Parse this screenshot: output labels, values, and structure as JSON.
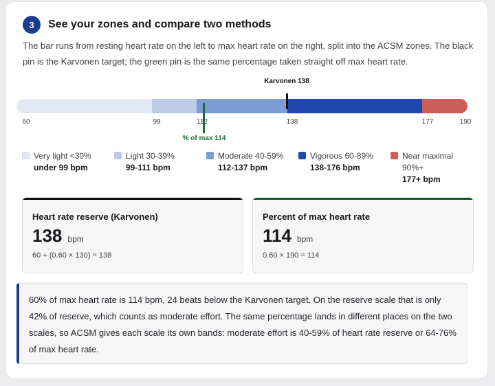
{
  "step": {
    "number": "3",
    "title": "See your zones and compare two methods"
  },
  "intro": "The bar runs from resting heart rate on the left to max heart rate on the right, split into the ACSM zones. The black pin is the Karvonen target; the green pin is the same percentage taken straight off max heart rate.",
  "zone_bar": {
    "min_bpm": 60,
    "max_bpm": 190,
    "segments": [
      {
        "name": "very-light",
        "from": 60,
        "to": 99,
        "color": "#e3e9f4"
      },
      {
        "name": "light",
        "from": 99,
        "to": 112,
        "color": "#bccbe8"
      },
      {
        "name": "moderate",
        "from": 112,
        "to": 138,
        "color": "#7b9dd4"
      },
      {
        "name": "vigorous",
        "from": 138,
        "to": 177,
        "color": "#1e48b0"
      },
      {
        "name": "near-maximal",
        "from": 177,
        "to": 190,
        "color": "#cd5f59"
      }
    ],
    "ticks": [
      "60",
      "99",
      "112",
      "138",
      "177",
      "190"
    ],
    "karvonen_pin": {
      "bpm": 138,
      "label": "Karvonen 138",
      "color": "#111111"
    },
    "percent_pin": {
      "bpm": 114,
      "label": "% of max 114",
      "color": "#1f6b38"
    }
  },
  "legend": [
    {
      "label": "Very light <30%",
      "range": "under 99 bpm",
      "color": "#e3e9f4"
    },
    {
      "label": "Light 30-39%",
      "range": "99-111 bpm",
      "color": "#bccbe8"
    },
    {
      "label": "Moderate 40-59%",
      "range": "112-137 bpm",
      "color": "#7b9dd4"
    },
    {
      "label": "Vigorous 60-89%",
      "range": "138-176 bpm",
      "color": "#1e48b0"
    },
    {
      "label_line1": "Near maximal",
      "label_line2": "90%+",
      "range": "177+ bpm",
      "color": "#cd5f59"
    }
  ],
  "metrics": {
    "karvonen": {
      "title": "Heart rate reserve (Karvonen)",
      "value": "138",
      "unit": "bpm",
      "formula": "60 + (0.60 × 130) = 138",
      "accent": "#111111"
    },
    "percent_max": {
      "title": "Percent of max heart rate",
      "value": "114",
      "unit": "bpm",
      "formula": "0.60 × 190 = 114",
      "accent": "#1f5a34"
    }
  },
  "note": "60% of max heart rate is 114 bpm, 24 beats below the Karvonen target. On the reserve scale that is only 42% of reserve, which counts as moderate effort. The same percentage lands in different places on the two scales, so ACSM gives each scale its own bands: moderate effort is 40-59% of heart rate reserve or 64-76% of max heart rate."
}
